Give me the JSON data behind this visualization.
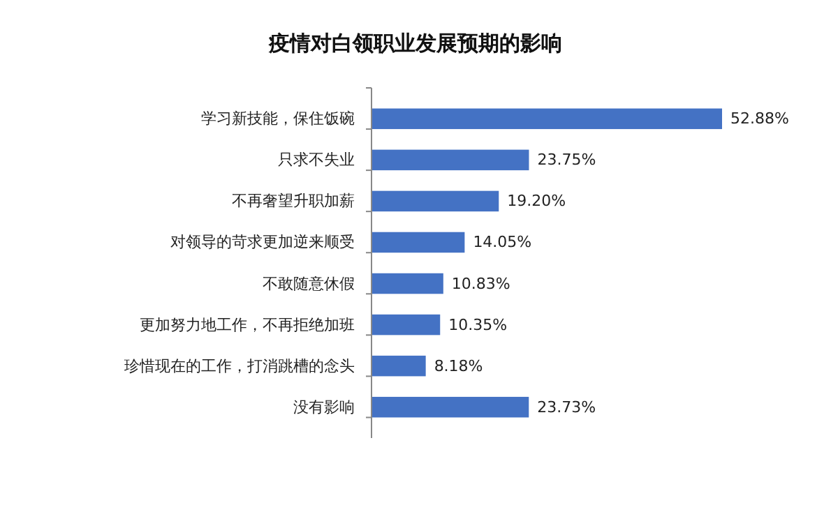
{
  "chart_data": {
    "type": "bar",
    "orientation": "horizontal",
    "title": "疫情对白领职业发展预期的影响",
    "categories": [
      "学习新技能，保住饭碗",
      "只求不失业",
      "不再奢望升职加薪",
      "对领导的苛求更加逆来顺受",
      "不敢随意休假",
      "更加努力地工作，不再拒绝加班",
      "珍惜现在的工作，打消跳槽的念头",
      "没有影响"
    ],
    "values": [
      52.88,
      23.75,
      19.2,
      14.05,
      10.83,
      10.35,
      8.18,
      23.73
    ],
    "value_labels": [
      "52.88%",
      "23.75%",
      "19.20%",
      "14.05%",
      "10.83%",
      "10.35%",
      "8.18%",
      "23.73%"
    ],
    "color": "#4472c4"
  }
}
